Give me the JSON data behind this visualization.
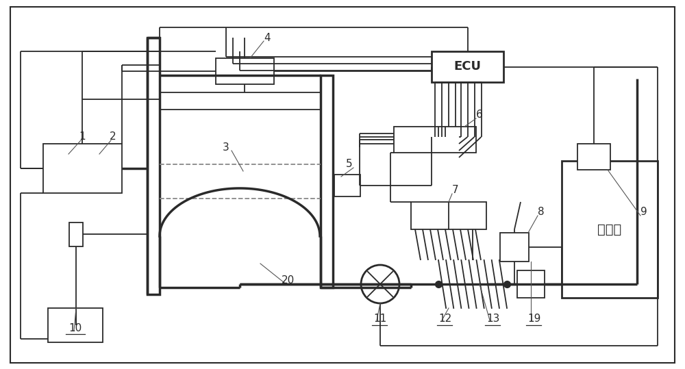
{
  "bg_color": "#ffffff",
  "lc": "#2a2a2a",
  "fig_width": 10.0,
  "fig_height": 5.39,
  "dpi": 100
}
